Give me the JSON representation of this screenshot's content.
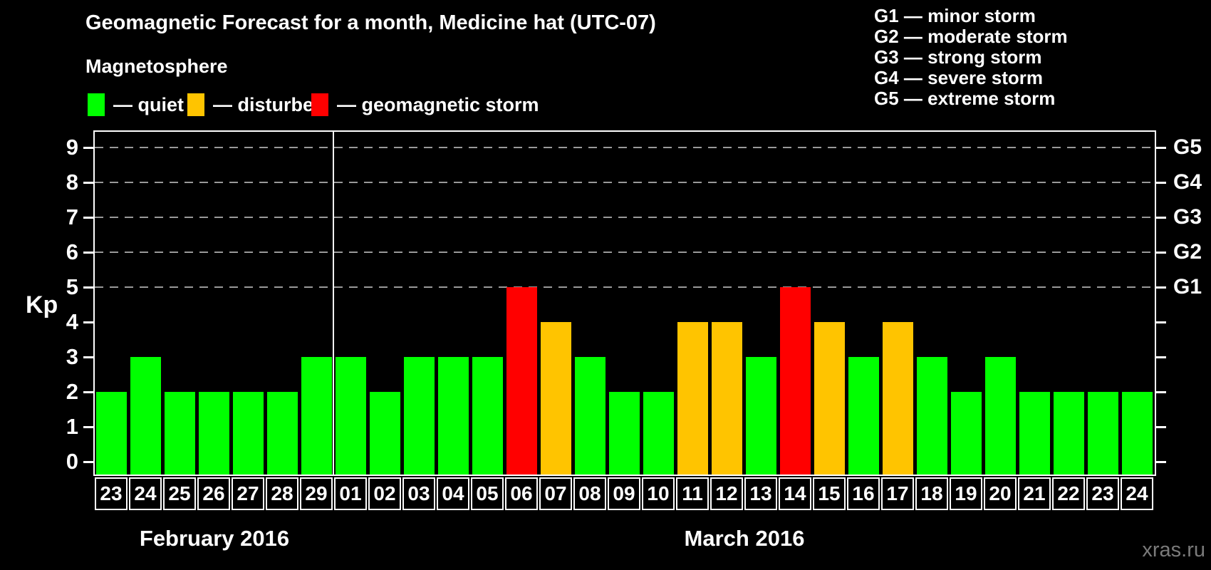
{
  "title": "Geomagnetic Forecast for a month, Medicine hat (UTC-07)",
  "subtitle": "Magnetosphere",
  "legend": {
    "items": [
      {
        "name": "quiet",
        "label": "— quiet",
        "color": "#00ff00"
      },
      {
        "name": "disturbed",
        "label": "— disturbed",
        "color": "#ffc400"
      },
      {
        "name": "storm",
        "label": "— geomagnetic storm",
        "color": "#ff0000"
      }
    ]
  },
  "g_scale_legend": [
    "G1 — minor storm",
    "G2 — moderate storm",
    "G3 — strong storm",
    "G4 — severe storm",
    "G5 — extreme storm"
  ],
  "watermark": "xras.ru",
  "chart_data": {
    "type": "bar",
    "ylabel": "Kp",
    "ylim": [
      0,
      9
    ],
    "y_ticks": [
      0,
      1,
      2,
      3,
      4,
      5,
      6,
      7,
      8,
      9
    ],
    "grid_levels_kp": [
      5,
      6,
      7,
      8,
      9
    ],
    "grid_color": "#999999",
    "right_axis": [
      {
        "label": "G1",
        "kp": 5
      },
      {
        "label": "G2",
        "kp": 6
      },
      {
        "label": "G3",
        "kp": 7
      },
      {
        "label": "G4",
        "kp": 8
      },
      {
        "label": "G5",
        "kp": 9
      }
    ],
    "status_colors": {
      "quiet": "#00ff00",
      "disturbed": "#ffc400",
      "storm": "#ff0000"
    },
    "months": [
      {
        "label": "February 2016",
        "points": [
          {
            "day": "23",
            "kp": 2,
            "status": "quiet"
          },
          {
            "day": "24",
            "kp": 3,
            "status": "quiet"
          },
          {
            "day": "25",
            "kp": 2,
            "status": "quiet"
          },
          {
            "day": "26",
            "kp": 2,
            "status": "quiet"
          },
          {
            "day": "27",
            "kp": 2,
            "status": "quiet"
          },
          {
            "day": "28",
            "kp": 2,
            "status": "quiet"
          },
          {
            "day": "29",
            "kp": 3,
            "status": "quiet"
          }
        ]
      },
      {
        "label": "March 2016",
        "points": [
          {
            "day": "01",
            "kp": 3,
            "status": "quiet"
          },
          {
            "day": "02",
            "kp": 2,
            "status": "quiet"
          },
          {
            "day": "03",
            "kp": 3,
            "status": "quiet"
          },
          {
            "day": "04",
            "kp": 3,
            "status": "quiet"
          },
          {
            "day": "05",
            "kp": 3,
            "status": "quiet"
          },
          {
            "day": "06",
            "kp": 5,
            "status": "storm"
          },
          {
            "day": "07",
            "kp": 4,
            "status": "disturbed"
          },
          {
            "day": "08",
            "kp": 3,
            "status": "quiet"
          },
          {
            "day": "09",
            "kp": 2,
            "status": "quiet"
          },
          {
            "day": "10",
            "kp": 2,
            "status": "quiet"
          },
          {
            "day": "11",
            "kp": 4,
            "status": "disturbed"
          },
          {
            "day": "12",
            "kp": 4,
            "status": "disturbed"
          },
          {
            "day": "13",
            "kp": 3,
            "status": "quiet"
          },
          {
            "day": "14",
            "kp": 5,
            "status": "storm"
          },
          {
            "day": "15",
            "kp": 4,
            "status": "disturbed"
          },
          {
            "day": "16",
            "kp": 3,
            "status": "quiet"
          },
          {
            "day": "17",
            "kp": 4,
            "status": "disturbed"
          },
          {
            "day": "18",
            "kp": 3,
            "status": "quiet"
          },
          {
            "day": "19",
            "kp": 2,
            "status": "quiet"
          },
          {
            "day": "20",
            "kp": 3,
            "status": "quiet"
          },
          {
            "day": "21",
            "kp": 2,
            "status": "quiet"
          },
          {
            "day": "22",
            "kp": 2,
            "status": "quiet"
          },
          {
            "day": "23",
            "kp": 2,
            "status": "quiet"
          },
          {
            "day": "24",
            "kp": 2,
            "status": "quiet"
          }
        ]
      }
    ]
  }
}
